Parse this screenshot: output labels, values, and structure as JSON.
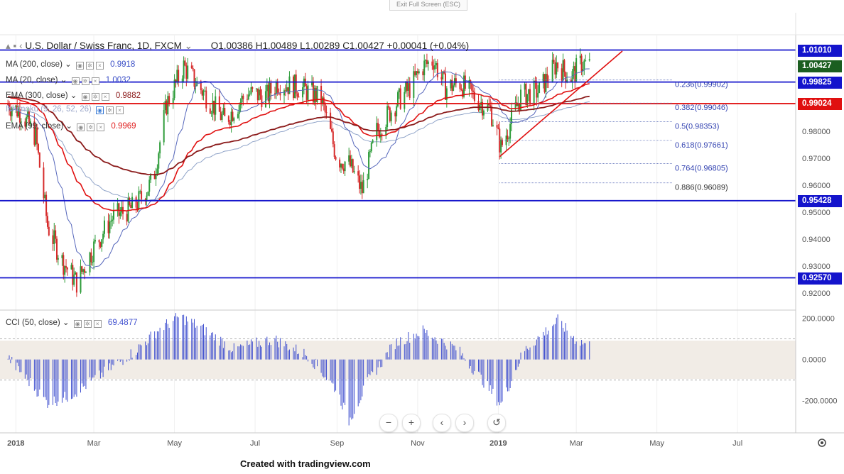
{
  "toolbar": {
    "exit_fullscreen": "Exit Full Screen (ESC)"
  },
  "symbol": {
    "name": "U.S. Dollar / Swiss Franc, 1D, FXCM",
    "open": "O1.00386",
    "high": "H1.00489",
    "low": "L1.00289",
    "close": "C1.00427",
    "change": "+0.00041 (+0.04%)"
  },
  "indicators": [
    {
      "label": "MA (200, close)",
      "value": "0.9918",
      "color": "#3b4fc7"
    },
    {
      "label": "MA (20, close)",
      "value": "1.0032",
      "color": "#3b4fc7"
    },
    {
      "label": "EMA (300, close)",
      "value": "0.9882",
      "color": "#8b1a1a"
    },
    {
      "label": "Ichimoku (9, 26, 52, 26)",
      "value": "",
      "color": "#7f9ec9"
    },
    {
      "label": "EMA (99, close)",
      "value": "0.9969",
      "color": "#e02020"
    }
  ],
  "cci": {
    "label": "CCI (50, close)",
    "value": "69.4877"
  },
  "colors": {
    "up": "#2e9c3a",
    "down": "#d62a2a",
    "support": "#1414cc",
    "red": "#e01010",
    "ma_blue": "#5566bb",
    "ema300": "#8b1a1a",
    "cci": "#3f4fcf"
  },
  "price_labels": [
    {
      "text": "1.01010",
      "color": "#1414cc"
    },
    {
      "text": "1.00427",
      "color": "#1b5e20"
    },
    {
      "text": "0.99825",
      "color": "#1414cc"
    },
    {
      "text": "0.99024",
      "color": "#e01010"
    },
    {
      "text": "0.95428",
      "color": "#1414cc"
    },
    {
      "text": "0.92570",
      "color": "#1414cc"
    }
  ],
  "fib_levels": [
    "0.236(0.99902)",
    "0.382(0.99046)",
    "0.5(0.98353)",
    "0.618(0.97661)",
    "0.764(0.96805)",
    "0.886(0.96089)"
  ],
  "cci_ticks": [
    "200.0000",
    "0.0000",
    "-200.0000"
  ],
  "nav_buttons": [
    "−",
    "+",
    "‹",
    "›",
    "↺"
  ],
  "credit": "Created with tradingview.com",
  "chart_data": {
    "type": "candlestick",
    "title": "U.S. Dollar / Swiss Franc, 1D, FXCM",
    "x_ticks": [
      "2018",
      "Mar",
      "May",
      "Jul",
      "Sep",
      "Nov",
      "2019",
      "Mar",
      "May",
      "Jul"
    ],
    "y_ticks": [
      "0.98000",
      "0.97000",
      "0.96000",
      "0.95000",
      "0.94000",
      "0.93000",
      "0.92000"
    ],
    "ylim": [
      0.914,
      1.0155
    ],
    "horizontal_levels": [
      1.0101,
      0.99825,
      0.99024,
      0.95428,
      0.9257
    ],
    "close_path": [
      [
        "2017-12-26",
        0.99
      ],
      [
        "2018-01-05",
        0.987
      ],
      [
        "2018-01-16",
        0.978
      ],
      [
        "2018-01-25",
        0.945
      ],
      [
        "2018-02-05",
        0.932
      ],
      [
        "2018-02-16",
        0.924
      ],
      [
        "2018-03-01",
        0.937
      ],
      [
        "2018-03-15",
        0.948
      ],
      [
        "2018-04-01",
        0.952
      ],
      [
        "2018-04-15",
        0.962
      ],
      [
        "2018-04-25",
        0.99
      ],
      [
        "2018-05-08",
        1.004
      ],
      [
        "2018-05-25",
        0.993
      ],
      [
        "2018-06-08",
        0.984
      ],
      [
        "2018-06-25",
        0.994
      ],
      [
        "2018-07-10",
        0.993
      ],
      [
        "2018-07-18",
        0.998
      ],
      [
        "2018-08-05",
        0.996
      ],
      [
        "2018-08-20",
        0.992
      ],
      [
        "2018-09-01",
        0.97
      ],
      [
        "2018-09-10",
        0.968
      ],
      [
        "2018-09-20",
        0.958
      ],
      [
        "2018-10-01",
        0.98
      ],
      [
        "2018-10-15",
        0.99
      ],
      [
        "2018-10-26",
        0.996
      ],
      [
        "2018-11-05",
        1.004
      ],
      [
        "2018-11-13",
        1.0065
      ],
      [
        "2018-11-22",
        0.996
      ],
      [
        "2018-12-03",
        0.998
      ],
      [
        "2018-12-13",
        0.993
      ],
      [
        "2018-12-26",
        0.988
      ],
      [
        "2019-01-03",
        0.974
      ],
      [
        "2019-01-18",
        0.993
      ],
      [
        "2019-02-01",
        0.995
      ],
      [
        "2019-02-14",
        1.005
      ],
      [
        "2019-02-25",
        1.0
      ],
      [
        "2019-03-05",
        1.0055
      ],
      [
        "2019-03-10",
        1.0043
      ]
    ],
    "cci_ylim": [
      -350,
      230
    ],
    "cci_path": [
      [
        "2017-12-26",
        10
      ],
      [
        "2018-01-10",
        -100
      ],
      [
        "2018-01-25",
        -210
      ],
      [
        "2018-02-10",
        -180
      ],
      [
        "2018-03-01",
        -100
      ],
      [
        "2018-04-01",
        40
      ],
      [
        "2018-04-20",
        150
      ],
      [
        "2018-05-05",
        210
      ],
      [
        "2018-05-20",
        160
      ],
      [
        "2018-06-15",
        50
      ],
      [
        "2018-07-15",
        100
      ],
      [
        "2018-08-10",
        20
      ],
      [
        "2018-09-01",
        -150
      ],
      [
        "2018-09-10",
        -300
      ],
      [
        "2018-09-25",
        -100
      ],
      [
        "2018-10-15",
        80
      ],
      [
        "2018-11-05",
        140
      ],
      [
        "2018-12-01",
        50
      ],
      [
        "2018-12-20",
        -100
      ],
      [
        "2019-01-03",
        -220
      ],
      [
        "2019-01-20",
        40
      ],
      [
        "2019-02-15",
        190
      ],
      [
        "2019-02-28",
        100
      ],
      [
        "2019-03-10",
        70
      ]
    ]
  }
}
